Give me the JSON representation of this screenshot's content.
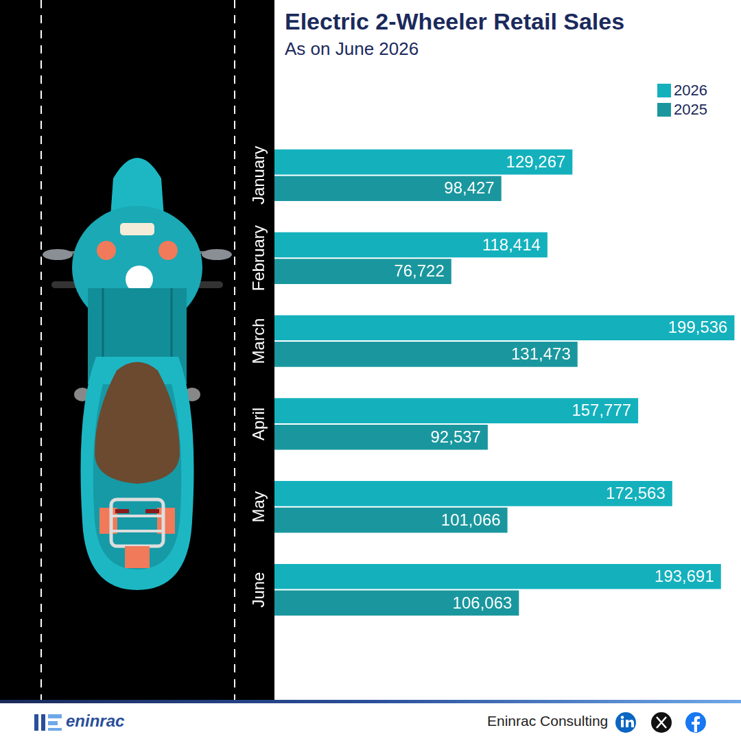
{
  "title": "Electric 2-Wheeler Retail Sales",
  "subtitle": "As on June 2026",
  "footer": "Eninrac Consulting",
  "logo_text": "eninrac",
  "chart_data": {
    "type": "bar",
    "orientation": "horizontal",
    "categories": [
      "January",
      "February",
      "March",
      "April",
      "May",
      "June"
    ],
    "series": [
      {
        "name": "2026",
        "color": "#14b1bd",
        "values": [
          129267,
          118414,
          199536,
          157777,
          172563,
          193691
        ],
        "value_labels": [
          "129,267",
          "118,414",
          "199,536",
          "157,777",
          "172,563",
          "193,691"
        ]
      },
      {
        "name": "2025",
        "color": "#1a979e",
        "values": [
          98427,
          76722,
          131473,
          92537,
          101066,
          106063
        ],
        "value_labels": [
          "98,427",
          "76,722",
          "131,473",
          "92,537",
          "101,066",
          "106,063"
        ]
      }
    ],
    "xlim": [
      0,
      200000
    ],
    "data_labels": true,
    "legend": "top-right",
    "grid": false,
    "tick_labels": false
  }
}
